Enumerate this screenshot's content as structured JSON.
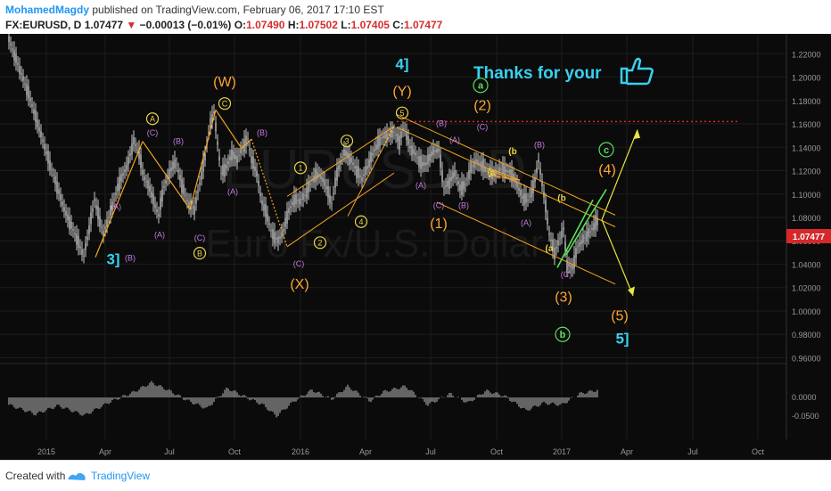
{
  "header": {
    "author": "MohamedMagdy",
    "published_text": "published on TradingView.com, February 06, 2017 17:10 EST",
    "symbol_text": "FX:EURUSD, D",
    "last": "1.07477",
    "change": "−0.00013 (−0.01%)",
    "open_label": "O:",
    "open": "1.07490",
    "high_label": "H:",
    "high": "1.07502",
    "low_label": "L:",
    "low": "1.07405",
    "close_label": "C:",
    "close": "1.07477"
  },
  "footer": {
    "created_with": "Created with",
    "brand": "TradingView"
  },
  "colors": {
    "background": "#0b0b0b",
    "candles": "#c8c8c8",
    "elliott_minor": "#e8d44a",
    "elliott_abc": "#c47be0",
    "elliott_major": "#ffa632",
    "elliott_green": "#5be05b",
    "elliott_cycle": "#39d0f0",
    "channel": "#f5a623",
    "projection": "#e6e642",
    "resistance": "#d42a2a",
    "histogram": "#bdbdbd",
    "price_tag": "#d62828"
  },
  "chart_data": {
    "type": "line",
    "symbol": "EURUSD",
    "description": "Euro Fx/U.S. Dollar",
    "watermark_symbol": "EURUSD, D",
    "watermark_text": "Euro Fx/U.S. Dollar",
    "current_price": "1.07477",
    "x_ticks": [
      "2015",
      "Apr",
      "Jul",
      "Oct",
      "2016",
      "Apr",
      "Jul",
      "Oct",
      "2017",
      "Apr",
      "Jul",
      "Oct"
    ],
    "y_ticks": [
      "1.22000",
      "1.20000",
      "1.18000",
      "1.16000",
      "1.14000",
      "1.12000",
      "1.10000",
      "1.08000",
      "1.06000",
      "1.04000",
      "1.02000",
      "1.00000",
      "0.98000",
      "0.96000"
    ],
    "ylim": [
      0.955,
      1.237
    ],
    "osc_ticks": [
      "0.0000",
      "-0.0500"
    ],
    "resistance_level": 1.162,
    "price_path": [
      [
        0,
        1.232
      ],
      [
        22,
        1.186
      ],
      [
        45,
        1.128
      ],
      [
        63,
        1.085
      ],
      [
        75,
        1.064
      ],
      [
        84,
        1.047
      ],
      [
        90,
        1.07
      ],
      [
        96,
        1.095
      ],
      [
        100,
        1.083
      ],
      [
        106,
        1.066
      ],
      [
        114,
        1.085
      ],
      [
        124,
        1.11
      ],
      [
        133,
        1.125
      ],
      [
        140,
        1.145
      ],
      [
        146,
        1.135
      ],
      [
        151,
        1.115
      ],
      [
        158,
        1.105
      ],
      [
        164,
        1.09
      ],
      [
        168,
        1.082
      ],
      [
        173,
        1.104
      ],
      [
        180,
        1.118
      ],
      [
        187,
        1.128
      ],
      [
        194,
        1.108
      ],
      [
        201,
        1.092
      ],
      [
        208,
        1.087
      ],
      [
        213,
        1.105
      ],
      [
        220,
        1.132
      ],
      [
        225,
        1.158
      ],
      [
        230,
        1.17
      ],
      [
        233,
        1.15
      ],
      [
        238,
        1.118
      ],
      [
        244,
        1.123
      ],
      [
        250,
        1.134
      ],
      [
        256,
        1.13
      ],
      [
        262,
        1.14
      ],
      [
        268,
        1.147
      ],
      [
        272,
        1.13
      ],
      [
        278,
        1.118
      ],
      [
        283,
        1.095
      ],
      [
        289,
        1.083
      ],
      [
        295,
        1.066
      ],
      [
        302,
        1.06
      ],
      [
        308,
        1.069
      ],
      [
        313,
        1.084
      ],
      [
        320,
        1.095
      ],
      [
        326,
        1.094
      ],
      [
        333,
        1.1
      ],
      [
        340,
        1.112
      ],
      [
        347,
        1.117
      ],
      [
        354,
        1.11
      ],
      [
        362,
        1.092
      ],
      [
        368,
        1.118
      ],
      [
        376,
        1.136
      ],
      [
        383,
        1.13
      ],
      [
        390,
        1.12
      ],
      [
        396,
        1.113
      ],
      [
        402,
        1.123
      ],
      [
        410,
        1.138
      ],
      [
        418,
        1.148
      ],
      [
        424,
        1.15
      ],
      [
        432,
        1.153
      ],
      [
        438,
        1.145
      ],
      [
        443,
        1.158
      ],
      [
        450,
        1.14
      ],
      [
        456,
        1.134
      ],
      [
        462,
        1.126
      ],
      [
        468,
        1.126
      ],
      [
        475,
        1.136
      ],
      [
        482,
        1.138
      ],
      [
        488,
        1.105
      ],
      [
        494,
        1.11
      ],
      [
        500,
        1.118
      ],
      [
        506,
        1.105
      ],
      [
        512,
        1.108
      ],
      [
        518,
        1.122
      ],
      [
        524,
        1.128
      ],
      [
        530,
        1.125
      ],
      [
        536,
        1.12
      ],
      [
        540,
        1.118
      ],
      [
        545,
        1.117
      ],
      [
        551,
        1.122
      ],
      [
        557,
        1.12
      ],
      [
        563,
        1.118
      ],
      [
        570,
        1.108
      ],
      [
        576,
        1.097
      ],
      [
        582,
        1.095
      ],
      [
        588,
        1.105
      ],
      [
        594,
        1.128
      ],
      [
        600,
        1.1
      ],
      [
        606,
        1.066
      ],
      [
        612,
        1.05
      ],
      [
        618,
        1.062
      ],
      [
        622,
        1.07
      ],
      [
        626,
        1.04
      ],
      [
        632,
        1.037
      ],
      [
        638,
        1.055
      ],
      [
        645,
        1.062
      ],
      [
        652,
        1.068
      ],
      [
        660,
        1.077
      ]
    ],
    "wave_labels": [
      {
        "text": "3]",
        "kind": "cycle",
        "x": 117,
        "y": 1.04
      },
      {
        "text": "(B)",
        "kind": "abc",
        "x": 136,
        "y": 1.043
      },
      {
        "text": "(A)",
        "kind": "abc",
        "x": 120,
        "y": 1.087
      },
      {
        "text": "(A)",
        "kind": "abc",
        "x": 169,
        "y": 1.063
      },
      {
        "text": "(C)",
        "kind": "abc",
        "x": 161,
        "y": 1.15
      },
      {
        "text": "A",
        "kind": "minor_circle",
        "x": 161,
        "y": 1.162
      },
      {
        "text": "(B)",
        "kind": "abc",
        "x": 190,
        "y": 1.143
      },
      {
        "text": "(C)",
        "kind": "abc",
        "x": 214,
        "y": 1.06
      },
      {
        "text": "B",
        "kind": "minor_circle",
        "x": 214,
        "y": 1.047
      },
      {
        "text": "(A)",
        "kind": "abc",
        "x": 251,
        "y": 1.1
      },
      {
        "text": "C",
        "kind": "minor_circle",
        "x": 242,
        "y": 1.175
      },
      {
        "text": "(W)",
        "kind": "major",
        "x": 242,
        "y": 1.192
      },
      {
        "text": "(B)",
        "kind": "abc",
        "x": 284,
        "y": 1.15
      },
      {
        "text": "(C)",
        "kind": "abc",
        "x": 325,
        "y": 1.038
      },
      {
        "text": "(X)",
        "kind": "major",
        "x": 326,
        "y": 1.019
      },
      {
        "text": "1",
        "kind": "minor_circle",
        "x": 327,
        "y": 1.12
      },
      {
        "text": "2",
        "kind": "minor_circle",
        "x": 349,
        "y": 1.056
      },
      {
        "text": "3",
        "kind": "minor_circle",
        "x": 379,
        "y": 1.143
      },
      {
        "text": "4",
        "kind": "minor_circle",
        "x": 395,
        "y": 1.074
      },
      {
        "text": "5",
        "kind": "minor_circle",
        "x": 441,
        "y": 1.167
      },
      {
        "text": "(Y)",
        "kind": "major",
        "x": 441,
        "y": 1.184
      },
      {
        "text": "4]",
        "kind": "cycle",
        "x": 441,
        "y": 1.207
      },
      {
        "text": "(B)",
        "kind": "abc",
        "x": 485,
        "y": 1.158
      },
      {
        "text": "(A)",
        "kind": "abc",
        "x": 462,
        "y": 1.105
      },
      {
        "text": "(A)",
        "kind": "abc",
        "x": 500,
        "y": 1.144
      },
      {
        "text": "(C)",
        "kind": "abc",
        "x": 482,
        "y": 1.088
      },
      {
        "text": "(B)",
        "kind": "abc",
        "x": 510,
        "y": 1.088
      },
      {
        "text": "(1)",
        "kind": "major",
        "x": 482,
        "y": 1.071
      },
      {
        "text": "(C)",
        "kind": "abc",
        "x": 531,
        "y": 1.155
      },
      {
        "text": "(2)",
        "kind": "major",
        "x": 531,
        "y": 1.172
      },
      {
        "text": "a",
        "kind": "green_circle",
        "x": 529,
        "y": 1.19
      },
      {
        "text": "(b",
        "kind": "minor",
        "x": 565,
        "y": 1.134
      },
      {
        "text": "(a",
        "kind": "minor",
        "x": 541,
        "y": 1.116
      },
      {
        "text": "(B)",
        "kind": "abc",
        "x": 595,
        "y": 1.14
      },
      {
        "text": "(A)",
        "kind": "abc",
        "x": 580,
        "y": 1.073
      },
      {
        "text": "(b",
        "kind": "minor",
        "x": 620,
        "y": 1.094
      },
      {
        "text": "(a",
        "kind": "minor",
        "x": 606,
        "y": 1.051
      },
      {
        "text": "(C)",
        "kind": "abc",
        "x": 625,
        "y": 1.029
      },
      {
        "text": "(3)",
        "kind": "major",
        "x": 622,
        "y": 1.008
      },
      {
        "text": "b",
        "kind": "green_circle",
        "x": 621,
        "y": 0.977
      },
      {
        "text": "c",
        "kind": "green_circle",
        "x": 670,
        "y": 1.135
      },
      {
        "text": "(4)",
        "kind": "major",
        "x": 671,
        "y": 1.117
      },
      {
        "text": "(5)",
        "kind": "major",
        "x": 685,
        "y": 0.992
      },
      {
        "text": "5]",
        "kind": "cycle",
        "x": 688,
        "y": 0.972
      }
    ],
    "annotation": "Thanks for your",
    "oscillator": {
      "type": "histogram",
      "description": "momentum oscillator",
      "series": [
        [
          0,
          -0.02
        ],
        [
          30,
          -0.045
        ],
        [
          55,
          -0.022
        ],
        [
          85,
          -0.048
        ],
        [
          115,
          -0.01
        ],
        [
          138,
          0.012
        ],
        [
          160,
          0.04
        ],
        [
          180,
          0.018
        ],
        [
          200,
          -0.008
        ],
        [
          222,
          -0.03
        ],
        [
          245,
          0.025
        ],
        [
          262,
          0.005
        ],
        [
          285,
          -0.02
        ],
        [
          300,
          -0.05
        ],
        [
          320,
          -0.01
        ],
        [
          340,
          0.02
        ],
        [
          362,
          -0.005
        ],
        [
          380,
          0.03
        ],
        [
          405,
          -0.01
        ],
        [
          420,
          0.015
        ],
        [
          445,
          0.03
        ],
        [
          470,
          -0.02
        ],
        [
          495,
          0.01
        ],
        [
          515,
          -0.015
        ],
        [
          535,
          0.018
        ],
        [
          555,
          0.005
        ],
        [
          580,
          -0.035
        ],
        [
          600,
          -0.015
        ],
        [
          620,
          -0.02
        ],
        [
          640,
          0.01
        ],
        [
          665,
          0.022
        ]
      ]
    }
  }
}
